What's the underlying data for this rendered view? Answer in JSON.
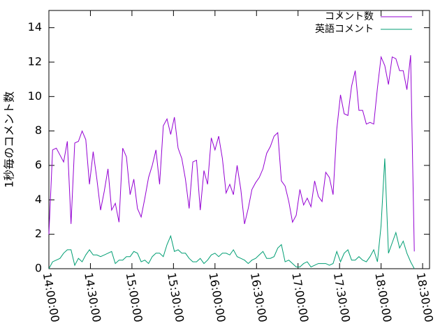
{
  "chart_data": {
    "type": "line",
    "y_label": "1秒毎のコメント数",
    "x": [
      "14:00:00",
      "14:02:40",
      "14:05:20",
      "14:08:00",
      "14:10:40",
      "14:13:20",
      "14:16:00",
      "14:18:40",
      "14:21:20",
      "14:24:00",
      "14:26:40",
      "14:29:20",
      "14:32:00",
      "14:34:40",
      "14:37:20",
      "14:40:00",
      "14:42:40",
      "14:45:20",
      "14:48:00",
      "14:50:40",
      "14:53:20",
      "14:56:00",
      "14:58:40",
      "15:01:20",
      "15:04:00",
      "15:06:40",
      "15:09:20",
      "15:12:00",
      "15:14:40",
      "15:17:20",
      "15:20:00",
      "15:22:40",
      "15:25:20",
      "15:28:00",
      "15:30:40",
      "15:33:20",
      "15:36:00",
      "15:38:40",
      "15:41:20",
      "15:44:00",
      "15:46:40",
      "15:49:20",
      "15:52:00",
      "15:54:40",
      "15:57:20",
      "16:00:00",
      "16:02:40",
      "16:05:20",
      "16:08:00",
      "16:10:40",
      "16:13:20",
      "16:16:00",
      "16:18:40",
      "16:21:20",
      "16:24:00",
      "16:26:40",
      "16:29:20",
      "16:32:00",
      "16:34:40",
      "16:37:20",
      "16:40:00",
      "16:42:40",
      "16:45:20",
      "16:48:00",
      "16:50:40",
      "16:53:20",
      "16:56:00",
      "16:58:40",
      "17:01:20",
      "17:04:00",
      "17:06:40",
      "17:09:20",
      "17:12:00",
      "17:14:40",
      "17:17:20",
      "17:20:00",
      "17:22:40",
      "17:25:20",
      "17:28:00",
      "17:30:40",
      "17:33:20",
      "17:36:00",
      "17:38:40",
      "17:41:20",
      "17:44:00",
      "17:46:40",
      "17:49:20",
      "17:52:00",
      "17:54:40",
      "17:57:20",
      "18:00:00",
      "18:02:40",
      "18:05:20",
      "18:08:00",
      "18:10:40",
      "18:13:20",
      "18:16:00",
      "18:18:40",
      "18:21:20",
      "18:24:00"
    ],
    "series": [
      {
        "name": "コメント数",
        "color": "#9400d3",
        "values": [
          2,
          6.9,
          7,
          6.6,
          6.2,
          7.4,
          2.6,
          7.3,
          7.4,
          8,
          7.5,
          4.9,
          6.8,
          5.2,
          3.4,
          4.5,
          5.8,
          3.4,
          3.8,
          2.7,
          7,
          6.5,
          4.3,
          5.2,
          3.5,
          3,
          4.1,
          5.3,
          6,
          6.9,
          4.9,
          8.3,
          8.7,
          7.8,
          8.8,
          7,
          6.4,
          5.2,
          3.5,
          6.2,
          6.3,
          3.4,
          5.7,
          4.9,
          7.6,
          6.9,
          7.7,
          6.4,
          4.4,
          4.9,
          4.3,
          6,
          4.6,
          2.6,
          3.5,
          4.6,
          5,
          5.3,
          5.8,
          6.7,
          7.1,
          7.7,
          7.9,
          5.1,
          4.8,
          3.9,
          2.7,
          3.1,
          4.6,
          3.7,
          4.1,
          3.6,
          5.1,
          4.2,
          3.9,
          5.6,
          5.3,
          4.3,
          8.1,
          10.1,
          9,
          8.9,
          10.6,
          11.5,
          9.2,
          9.2,
          8.4,
          8.5,
          8.4,
          10.5,
          12.3,
          11.8,
          10.7,
          12.3,
          12.2,
          11.5,
          11.5,
          10.4,
          12.4,
          1
        ]
      },
      {
        "name": "英語コメント",
        "color": "#009e73",
        "values": [
          0,
          0.4,
          0.5,
          0.6,
          0.9,
          1.1,
          1.1,
          0.2,
          0.6,
          0.4,
          0.8,
          1.1,
          0.8,
          0.8,
          0.7,
          0.8,
          0.9,
          1.0,
          0.3,
          0.5,
          0.5,
          0.7,
          0.7,
          1.0,
          0.9,
          0.4,
          0.5,
          0.3,
          0.7,
          0.9,
          0.9,
          0.7,
          1.4,
          1.9,
          1.0,
          1.1,
          0.9,
          0.9,
          0.6,
          0.4,
          0.4,
          0.6,
          0.3,
          0.5,
          0.8,
          0.9,
          0.7,
          0.9,
          0.9,
          0.8,
          1.1,
          0.7,
          0.6,
          0.5,
          0.3,
          0.5,
          0.6,
          0.8,
          1.0,
          0.6,
          0.6,
          0.7,
          1.2,
          1.4,
          0.4,
          0.5,
          0.3,
          0.1,
          0.1,
          0.3,
          0.4,
          0.1,
          0.2,
          0.3,
          0.3,
          0.3,
          0.2,
          0.3,
          1.0,
          0.4,
          0.9,
          1.1,
          0.5,
          0.5,
          0.7,
          0.5,
          0.4,
          0.7,
          1.1,
          0.4,
          2.5,
          6.4,
          0.9,
          1.5,
          2.1,
          1.2,
          1.6,
          0.9,
          0.4,
          0
        ]
      }
    ],
    "xlim": [
      "14:00:00",
      "18:35:00"
    ],
    "xticks": [
      "14:00:00",
      "14:30:00",
      "15:00:00",
      "15:30:00",
      "16:00:00",
      "16:30:00",
      "17:00:00",
      "17:30:00",
      "18:00:00",
      "18:30:00"
    ],
    "ylim": [
      0,
      15
    ],
    "yticks": [
      0,
      2,
      4,
      6,
      8,
      10,
      12,
      14
    ],
    "grid": false,
    "legend": "top-right"
  }
}
